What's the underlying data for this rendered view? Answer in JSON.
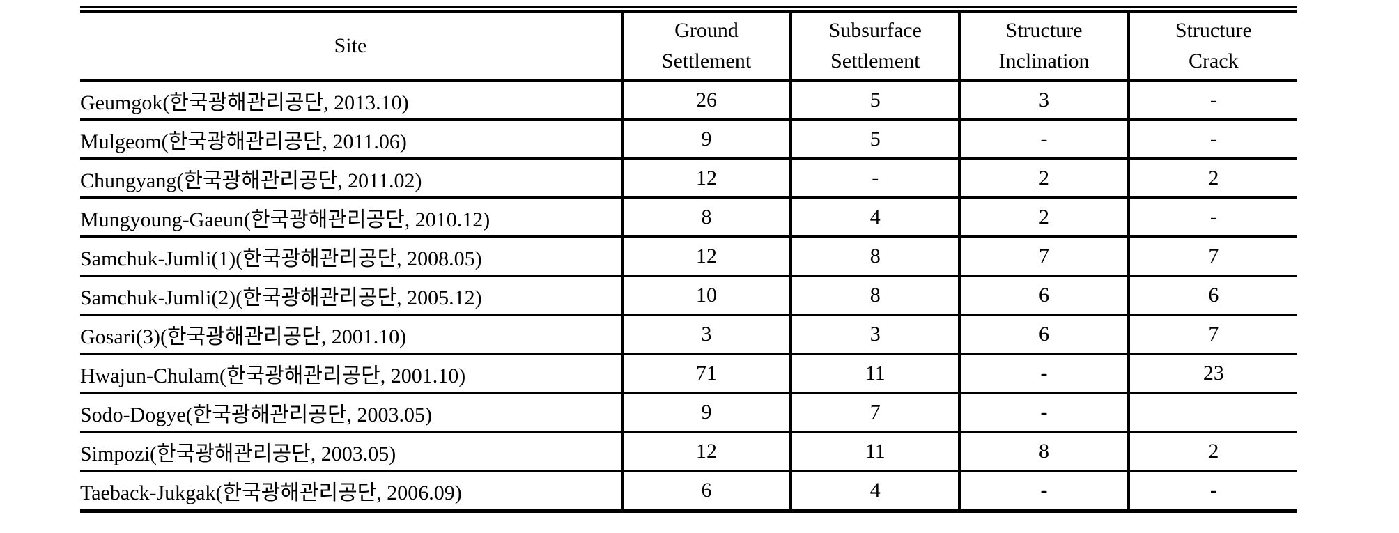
{
  "table": {
    "header": {
      "site": "Site",
      "columns": [
        {
          "line1": "Ground",
          "line2": "Settlement"
        },
        {
          "line1": "Subsurface",
          "line2": "Settlement"
        },
        {
          "line1": "Structure",
          "line2": "Inclination"
        },
        {
          "line1": "Structure",
          "line2": "Crack"
        }
      ]
    },
    "rows": [
      {
        "site": "Geumgok(한국광해관리공단, 2013.10)",
        "ground_settlement": "26",
        "subsurface_settlement": "5",
        "structure_inclination": "3",
        "structure_crack": "-"
      },
      {
        "site": "Mulgeom(한국광해관리공단, 2011.06)",
        "ground_settlement": "9",
        "subsurface_settlement": "5",
        "structure_inclination": "-",
        "structure_crack": "-"
      },
      {
        "site": "Chungyang(한국광해관리공단, 2011.02)",
        "ground_settlement": "12",
        "subsurface_settlement": "-",
        "structure_inclination": "2",
        "structure_crack": "2"
      },
      {
        "site": "Mungyoung-Gaeun(한국광해관리공단, 2010.12)",
        "ground_settlement": "8",
        "subsurface_settlement": "4",
        "structure_inclination": "2",
        "structure_crack": "-"
      },
      {
        "site": "Samchuk-Jumli(1)(한국광해관리공단, 2008.05)",
        "ground_settlement": "12",
        "subsurface_settlement": "8",
        "structure_inclination": "7",
        "structure_crack": "7"
      },
      {
        "site": "Samchuk-Jumli(2)(한국광해관리공단, 2005.12)",
        "ground_settlement": "10",
        "subsurface_settlement": "8",
        "structure_inclination": "6",
        "structure_crack": "6"
      },
      {
        "site": "Gosari(3)(한국광해관리공단, 2001.10)",
        "ground_settlement": "3",
        "subsurface_settlement": "3",
        "structure_inclination": "6",
        "structure_crack": "7"
      },
      {
        "site": "Hwajun-Chulam(한국광해관리공단, 2001.10)",
        "ground_settlement": "71",
        "subsurface_settlement": "11",
        "structure_inclination": "-",
        "structure_crack": "23"
      },
      {
        "site": "Sodo-Dogye(한국광해관리공단, 2003.05)",
        "ground_settlement": "9",
        "subsurface_settlement": "7",
        "structure_inclination": "-",
        "structure_crack": ""
      },
      {
        "site": "Simpozi(한국광해관리공단, 2003.05)",
        "ground_settlement": "12",
        "subsurface_settlement": "11",
        "structure_inclination": "8",
        "structure_crack": "2"
      },
      {
        "site": "Taeback-Jukgak(한국광해관리공단, 2006.09)",
        "ground_settlement": "6",
        "subsurface_settlement": "4",
        "structure_inclination": "-",
        "structure_crack": "-"
      }
    ]
  }
}
